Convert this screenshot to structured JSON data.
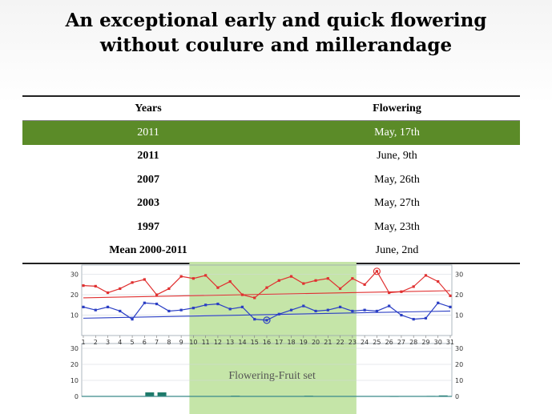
{
  "slide": {
    "title_line1": "An exceptional early and quick flowering",
    "title_line2": "without coulure and millerandage"
  },
  "table": {
    "headers": [
      "Years",
      "Flowering"
    ],
    "rows": [
      {
        "year": "2011",
        "flowering": "May, 17th",
        "highlighted": true
      },
      {
        "year": "2011",
        "flowering": "June, 9th"
      },
      {
        "year": "2007",
        "flowering": "May, 26th"
      },
      {
        "year": "2003",
        "flowering": "May, 27th"
      },
      {
        "year": "1997",
        "flowering": "May, 23th"
      },
      {
        "year": "Mean 2000-2011",
        "flowering": "June, 2nd"
      }
    ]
  },
  "chart_data": {
    "type": "line",
    "days": [
      1,
      2,
      3,
      4,
      5,
      6,
      7,
      8,
      9,
      10,
      11,
      12,
      13,
      14,
      15,
      16,
      17,
      18,
      19,
      20,
      21,
      22,
      23,
      24,
      25,
      26,
      27,
      28,
      29,
      30,
      31
    ],
    "upper_yticks": [
      10,
      20,
      30
    ],
    "lower_yticks": [
      0,
      10,
      20,
      30
    ],
    "upper_ylim": [
      0,
      33
    ],
    "lower_ylim": [
      0,
      33
    ],
    "shaded_band": {
      "from_day": 10,
      "to_day": 23,
      "label": "Flowering-Fruit set",
      "color": "#c5e5a8"
    },
    "series": [
      {
        "values": [
          24.5,
          24.2,
          21,
          23,
          26,
          27.5,
          20,
          23,
          29,
          28,
          29.5,
          23.5,
          26.5,
          20,
          18.5,
          23.5,
          27,
          29,
          25.5,
          27,
          28,
          23,
          28,
          25,
          31.5,
          21,
          21.5,
          24,
          29.5,
          26.5,
          19.5
        ],
        "color": "#e03030",
        "marker_circle_day": 25
      },
      {
        "trend": [
          18.5,
          22
        ],
        "color": "#e03030"
      },
      {
        "values": [
          14,
          12.5,
          14,
          12,
          8,
          16,
          15.5,
          12,
          12.5,
          13.5,
          15,
          15.5,
          13,
          14,
          8,
          7.5,
          10.5,
          12.5,
          14.5,
          12,
          12.5,
          14,
          12,
          12.5,
          12,
          14.5,
          10,
          8,
          8.5,
          16,
          14
        ],
        "color": "#2a3ec4",
        "marker_circle_day": 16
      },
      {
        "trend": [
          8.5,
          12
        ],
        "color": "#2a3ec4"
      },
      {
        "type": "bar",
        "values": [
          0,
          0,
          0,
          0,
          0,
          2.5,
          2.5,
          0,
          0,
          0,
          0,
          0,
          0.4,
          0,
          0,
          0,
          0,
          0,
          0.4,
          0,
          0,
          0,
          0,
          0,
          0,
          0.2,
          0,
          0,
          0.3,
          0.6,
          0
        ],
        "color": "#1d7a6a"
      }
    ]
  }
}
